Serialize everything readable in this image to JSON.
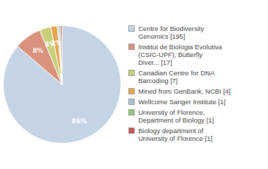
{
  "chart_data": {
    "type": "pie",
    "categories": [
      "Centre for Biodiversity\nGenomics [195]",
      "Institut de Biologia Evolutiva\n(CSIC-UPF), Butterfly\nDiver... [17]",
      "Canadian Centre for DNA\nBarcoding [7]",
      "Mined from GenBank, NCBI [4]",
      "Wellcome Sanger Institute [1]",
      "University of Florence,\nDepartment of Biology [1]",
      "Biology department of\nUniversity of Florence [1]"
    ],
    "values": [
      86.28,
      7.52,
      3.1,
      1.77,
      0.44,
      0.44,
      0.44
    ],
    "value_labels": [
      "86%",
      "8%",
      "3%",
      "2%",
      null,
      null,
      null
    ],
    "data_labels": true,
    "colors": [
      "#c5d4e4",
      "#d9937c",
      "#c8cf7a",
      "#e8a44a",
      "#a8bfd4",
      "#8ec87a",
      "#c85050"
    ],
    "legend": "right"
  }
}
